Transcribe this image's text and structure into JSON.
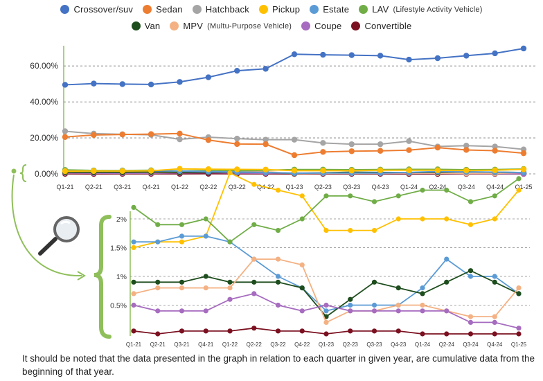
{
  "legend": [
    {
      "label": "Crossover/suv",
      "color": "#4472c4",
      "note": ""
    },
    {
      "label": "Sedan",
      "color": "#ed7d31",
      "note": ""
    },
    {
      "label": "Hatchback",
      "color": "#a5a5a5",
      "note": ""
    },
    {
      "label": "Pickup",
      "color": "#ffc000",
      "note": ""
    },
    {
      "label": "Estate",
      "color": "#5b9bd5",
      "note": ""
    },
    {
      "label": "LAV",
      "color": "#70ad47",
      "note": "(Lifestyle Activity Vehicle)"
    },
    {
      "label": "Van",
      "color": "#1e4d1e",
      "note": ""
    },
    {
      "label": "MPV",
      "color": "#f4b183",
      "note": "(Multu-Purpose Vehicle)"
    },
    {
      "label": "Coupe",
      "color": "#a66cbf",
      "note": ""
    },
    {
      "label": "Convertible",
      "color": "#7b1020",
      "note": ""
    }
  ],
  "chart_data": [
    {
      "type": "line",
      "categories": [
        "Q1-21",
        "Q2-21",
        "Q3-21",
        "Q4-21",
        "Q1-22",
        "Q2-22",
        "Q3-22",
        "Q4-22",
        "Q1-23",
        "Q2-23",
        "Q3-23",
        "Q4-23",
        "Q1-24",
        "Q2-24",
        "Q3-24",
        "Q4-24",
        "Q1-25"
      ],
      "yticks": [
        "0.00%",
        "20.00%",
        "40.00%",
        "60.00%"
      ],
      "ylim": [
        0,
        72
      ],
      "grid": true,
      "series": [
        {
          "name": "Crossover/suv",
          "color": "#4472c4",
          "values": [
            49.5,
            50.2,
            49.9,
            49.7,
            51.1,
            53.7,
            57.3,
            58.4,
            66.5,
            66.2,
            66.0,
            65.7,
            63.5,
            64.3,
            65.7,
            67.0,
            69.7
          ]
        },
        {
          "name": "Sedan",
          "color": "#ed7d31",
          "values": [
            20.5,
            21.6,
            21.9,
            22.1,
            22.4,
            18.8,
            16.6,
            16.5,
            10.4,
            12.2,
            12.6,
            12.8,
            13.2,
            14.6,
            13.3,
            12.9,
            11.5
          ]
        },
        {
          "name": "Hatchback",
          "color": "#a5a5a5",
          "values": [
            23.7,
            22.4,
            22.0,
            21.7,
            19.2,
            20.4,
            19.6,
            19.0,
            19.0,
            17.2,
            16.5,
            16.5,
            18.2,
            15.2,
            15.7,
            15.2,
            13.6
          ]
        },
        {
          "name": "Pickup",
          "color": "#ffc000",
          "values": [
            1.5,
            1.6,
            1.6,
            1.7,
            2.8,
            2.6,
            2.5,
            2.4,
            1.8,
            1.8,
            1.8,
            2.0,
            2.0,
            2.0,
            1.9,
            2.0,
            2.5
          ]
        },
        {
          "name": "Estate",
          "color": "#5b9bd5",
          "values": [
            1.6,
            1.6,
            1.7,
            1.7,
            1.6,
            1.3,
            1.0,
            0.8,
            0.4,
            0.5,
            0.5,
            0.5,
            0.8,
            1.3,
            1.0,
            1.0,
            0.7
          ]
        },
        {
          "name": "LAV",
          "color": "#70ad47",
          "values": [
            2.2,
            1.9,
            1.9,
            2.0,
            1.6,
            1.9,
            1.8,
            2.0,
            2.4,
            2.4,
            2.3,
            2.4,
            2.5,
            2.5,
            2.3,
            2.4,
            2.7
          ]
        },
        {
          "name": "Van",
          "color": "#1e4d1e",
          "values": [
            0.9,
            0.9,
            0.9,
            1.0,
            0.9,
            0.9,
            0.9,
            0.8,
            0.3,
            0.6,
            0.9,
            0.8,
            0.7,
            0.9,
            1.1,
            0.9,
            0.7
          ]
        },
        {
          "name": "MPV",
          "color": "#f4b183",
          "values": [
            0.7,
            0.8,
            0.8,
            0.8,
            0.8,
            1.3,
            1.3,
            1.2,
            0.2,
            0.4,
            0.4,
            0.5,
            0.5,
            0.4,
            0.3,
            0.3,
            0.8
          ]
        },
        {
          "name": "Coupe",
          "color": "#a66cbf",
          "values": [
            0.5,
            0.4,
            0.4,
            0.4,
            0.6,
            0.7,
            0.5,
            0.4,
            0.5,
            0.4,
            0.4,
            0.4,
            0.4,
            0.4,
            0.2,
            0.2,
            0.1
          ]
        },
        {
          "name": "Convertible",
          "color": "#7b1020",
          "values": [
            0.05,
            0.0,
            0.05,
            0.05,
            0.05,
            0.1,
            0.05,
            0.05,
            0.0,
            0.05,
            0.05,
            0.05,
            0.0,
            0.0,
            0.0,
            0.0,
            0.0
          ]
        }
      ]
    },
    {
      "type": "line",
      "yticks": [
        "0.5%",
        "1%",
        "1.5%",
        "2%"
      ],
      "ytick_values": [
        0.5,
        1,
        1.5,
        2
      ],
      "note": "Same series, zoomed view of the 0%–2.5% range"
    }
  ],
  "footnote": "It should be noted that the data presented in the graph in relation to each quarter in given year, are cumulative data from the beginning of that year."
}
